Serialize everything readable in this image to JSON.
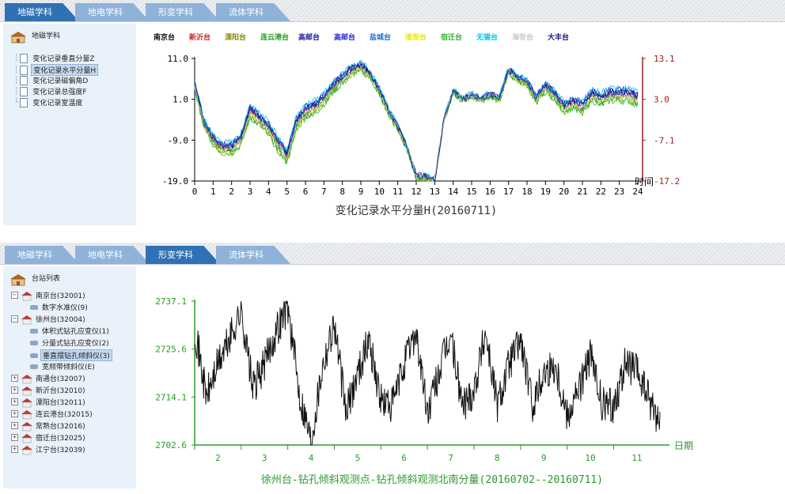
{
  "panel1": {
    "tabs": [
      "地磁学科",
      "地电学科",
      "形变学科",
      "流体学科"
    ],
    "active_tab": 0,
    "tree": {
      "root": "地磁学科",
      "items": [
        "变化记录垂直分量Z",
        "变化记录水平分量H",
        "变化记录磁偏角D",
        "变化记录总强度F",
        "变化记录室温度"
      ],
      "selected": 1
    },
    "legend": [
      {
        "name": "南京台",
        "color": "#111111"
      },
      {
        "name": "新沂台",
        "color": "#d42020"
      },
      {
        "name": "溧阳台",
        "color": "#8a8a00"
      },
      {
        "name": "连云港台",
        "color": "#1a9a1a"
      },
      {
        "name": "高邮台",
        "color": "#1a1a9a"
      },
      {
        "name": "高邮台",
        "color": "#2222dd"
      },
      {
        "name": "盐城台",
        "color": "#1e6ed2"
      },
      {
        "name": "淮安台",
        "color": "#e6e600"
      },
      {
        "name": "宿迁台",
        "color": "#33b433"
      },
      {
        "name": "无锡台",
        "color": "#00c8e6"
      },
      {
        "name": "海安台",
        "color": "#c8c8c8"
      },
      {
        "name": "大丰台",
        "color": "#1a1a8a"
      }
    ]
  },
  "panel2": {
    "tabs": [
      "地磁学科",
      "地电学科",
      "形变学科",
      "流体学科"
    ],
    "active_tab": 2,
    "tree": {
      "root": "台站列表",
      "stations": [
        {
          "label": "南京台(32001)",
          "expanded": true,
          "children": [
            "数字水准仪(9)"
          ]
        },
        {
          "label": "徐州台(32004)",
          "expanded": true,
          "children": [
            "体积式钻孔应变仪(1)",
            "分量式钻孔应变仪(2)",
            "垂直摆钻孔倾斜仪(3)",
            "宽频带倾斜仪(E)"
          ]
        },
        {
          "label": "南通台(32007)",
          "expanded": false,
          "children": []
        },
        {
          "label": "新沂台(32010)",
          "expanded": false,
          "children": []
        },
        {
          "label": "溧阳台(32011)",
          "expanded": false,
          "children": []
        },
        {
          "label": "连云港台(32015)",
          "expanded": false,
          "children": []
        },
        {
          "label": "常熟台(32016)",
          "expanded": false,
          "children": []
        },
        {
          "label": "宿迁台(32025)",
          "expanded": false,
          "children": []
        },
        {
          "label": "江宁台(32039)",
          "expanded": false,
          "children": []
        }
      ],
      "selected": "垂直摆钻孔倾斜仪(3)"
    }
  },
  "chart_data": [
    {
      "type": "line",
      "title": "变化记录水平分量H(20160711)",
      "xlabel": "时间",
      "xlim": [
        0,
        24
      ],
      "x_ticks": [
        "0",
        "1",
        "2",
        "3",
        "4",
        "5",
        "6",
        "7",
        "8",
        "9",
        "10",
        "11",
        "12",
        "13",
        "14",
        "15",
        "16",
        "17",
        "18",
        "19",
        "20",
        "21",
        "22",
        "23",
        "24"
      ],
      "left_axis": {
        "ticks": [
          "11.0",
          "1.0",
          "-9.0",
          "-19.0"
        ],
        "ylim": [
          -19.0,
          11.0
        ]
      },
      "right_axis": {
        "ticks": [
          "13.1",
          "3.0",
          "-7.1",
          "-17.2"
        ],
        "ylim": [
          -17.2,
          13.1
        ],
        "color": "#a02020"
      },
      "x": [
        0,
        0.5,
        1,
        1.5,
        2,
        2.5,
        3,
        3.5,
        4,
        4.5,
        5,
        5.5,
        6,
        6.5,
        7,
        7.5,
        8,
        8.5,
        9,
        9.5,
        10,
        10.5,
        11,
        11.5,
        12,
        12.5,
        13,
        13.5,
        14,
        14.5,
        15,
        15.5,
        16,
        16.5,
        17,
        17.5,
        18,
        18.5,
        19,
        19.5,
        20,
        20.5,
        21,
        21.5,
        22,
        22.5,
        23,
        23.5,
        24
      ],
      "series_values": [
        4.5,
        -5,
        -9,
        -11,
        -11,
        -9,
        -2,
        -4,
        -6,
        -10,
        -13,
        -5,
        -2,
        -1,
        1,
        4,
        6,
        8,
        9,
        7,
        3,
        -2,
        -6,
        -11,
        -18,
        -18,
        -19,
        -4,
        3,
        1,
        2,
        1,
        2,
        1,
        8,
        6,
        5,
        1,
        4,
        2,
        -1,
        0,
        -1,
        2,
        1,
        2,
        2,
        2,
        1
      ],
      "series": [
        {
          "name": "南京台",
          "color": "#111111",
          "offset": 0
        },
        {
          "name": "新沂台",
          "color": "#d42020",
          "offset": 0.6
        },
        {
          "name": "溧阳台",
          "color": "#8a8a00",
          "offset": -0.5
        },
        {
          "name": "连云港台",
          "color": "#1a9a1a",
          "offset": -1.2
        },
        {
          "name": "高邮台",
          "color": "#1a1a9a",
          "offset": 1.0
        },
        {
          "name": "高邮台",
          "color": "#2222dd",
          "offset": 1.3
        },
        {
          "name": "盐城台",
          "color": "#1e6ed2",
          "offset": 0.3
        },
        {
          "name": "淮安台",
          "color": "#e6e600",
          "offset": -0.8
        },
        {
          "name": "宿迁台",
          "color": "#33b433",
          "offset": -1.5
        },
        {
          "name": "无锡台",
          "color": "#00c8e6",
          "offset": 1.7
        },
        {
          "name": "海安台",
          "color": "#c8c8c8",
          "offset": -0.2
        },
        {
          "name": "大丰台",
          "color": "#1a1a8a",
          "offset": 0.8
        }
      ]
    },
    {
      "type": "line",
      "title": "徐州台-钻孔倾斜观测点-钻孔倾斜观测北南分量(20160702--20160711)",
      "xlabel": "日期",
      "x_ticks": [
        "2",
        "3",
        "4",
        "5",
        "6",
        "7",
        "8",
        "9",
        "10",
        "11"
      ],
      "xlim": [
        1.5,
        11.7
      ],
      "y_ticks": [
        "2737.1",
        "2725.6",
        "2714.1",
        "2702.6"
      ],
      "ylim": [
        2702.6,
        2737.1
      ],
      "x": [
        1.5,
        1.75,
        2,
        2.25,
        2.5,
        2.75,
        3,
        3.25,
        3.5,
        3.75,
        4,
        4.25,
        4.5,
        4.75,
        5,
        5.25,
        5.5,
        5.75,
        6,
        6.25,
        6.5,
        6.75,
        7,
        7.25,
        7.5,
        7.75,
        8,
        8.25,
        8.5,
        8.75,
        9,
        9.25,
        9.5,
        9.75,
        10,
        10.25,
        10.5,
        10.75,
        11,
        11.25,
        11.5
      ],
      "values": [
        2731,
        2714,
        2722,
        2728,
        2735,
        2716,
        2722,
        2730,
        2736,
        2715,
        2704,
        2722,
        2732,
        2710,
        2720,
        2728,
        2713,
        2712,
        2722,
        2730,
        2710,
        2720,
        2729,
        2712,
        2716,
        2730,
        2712,
        2722,
        2728,
        2712,
        2720,
        2722,
        2710,
        2716,
        2724,
        2712,
        2712,
        2722,
        2720,
        2714,
        2708
      ],
      "color": "#111111",
      "axis_color": "#2a9a2a"
    }
  ]
}
